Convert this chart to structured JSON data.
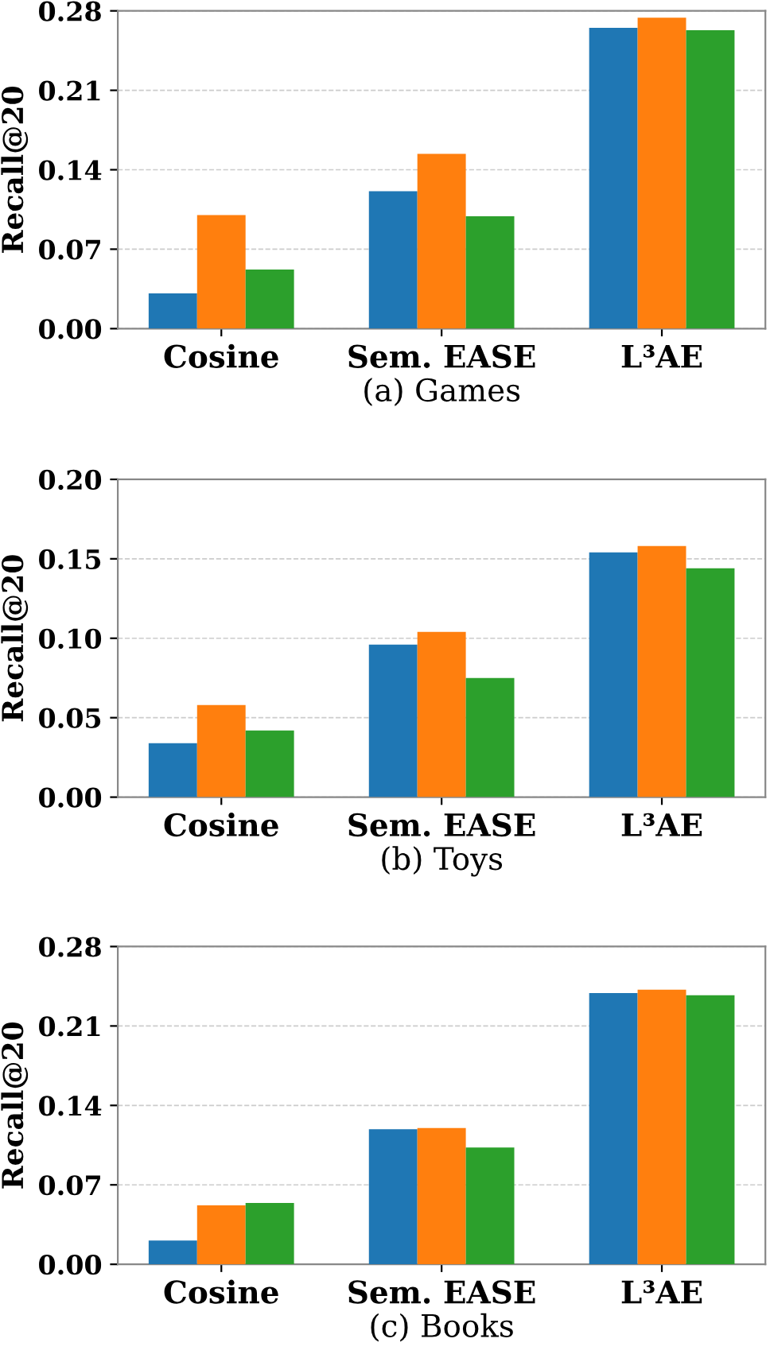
{
  "chart_data": [
    {
      "type": "bar",
      "title": "(a) Games",
      "ylabel": "Recall@20",
      "categories": [
        "Cosine",
        "Sem. EASE",
        "L³AE"
      ],
      "ylim": [
        0,
        0.28
      ],
      "yticks": [
        {
          "value": 0,
          "label": "0.00"
        },
        {
          "value": 0.07,
          "label": "0.07"
        },
        {
          "value": 0.14,
          "label": "0.14"
        },
        {
          "value": 0.21,
          "label": "0.21"
        },
        {
          "value": 0.28,
          "label": "0.28"
        }
      ],
      "grid": "y",
      "series": [
        {
          "color": "#1f77b4",
          "values": [
            0.031,
            0.121,
            0.265
          ]
        },
        {
          "color": "#ff7f0e",
          "values": [
            0.1,
            0.154,
            0.274
          ]
        },
        {
          "color": "#2ca02c",
          "values": [
            0.052,
            0.099,
            0.263
          ]
        }
      ]
    },
    {
      "type": "bar",
      "title": "(b) Toys",
      "ylabel": "Recall@20",
      "categories": [
        "Cosine",
        "Sem. EASE",
        "L³AE"
      ],
      "ylim": [
        0,
        0.2
      ],
      "yticks": [
        {
          "value": 0,
          "label": "0.00"
        },
        {
          "value": 0.05,
          "label": "0.05"
        },
        {
          "value": 0.1,
          "label": "0.10"
        },
        {
          "value": 0.15,
          "label": "0.15"
        },
        {
          "value": 0.2,
          "label": "0.20"
        }
      ],
      "grid": "y",
      "series": [
        {
          "color": "#1f77b4",
          "values": [
            0.034,
            0.096,
            0.154
          ]
        },
        {
          "color": "#ff7f0e",
          "values": [
            0.058,
            0.104,
            0.158
          ]
        },
        {
          "color": "#2ca02c",
          "values": [
            0.042,
            0.075,
            0.144
          ]
        }
      ]
    },
    {
      "type": "bar",
      "title": "(c) Books",
      "ylabel": "Recall@20",
      "categories": [
        "Cosine",
        "Sem. EASE",
        "L³AE"
      ],
      "ylim": [
        0,
        0.28
      ],
      "yticks": [
        {
          "value": 0,
          "label": "0.00"
        },
        {
          "value": 0.07,
          "label": "0.07"
        },
        {
          "value": 0.14,
          "label": "0.14"
        },
        {
          "value": 0.21,
          "label": "0.21"
        },
        {
          "value": 0.28,
          "label": "0.28"
        }
      ],
      "grid": "y",
      "series": [
        {
          "color": "#1f77b4",
          "values": [
            0.021,
            0.119,
            0.239
          ]
        },
        {
          "color": "#ff7f0e",
          "values": [
            0.052,
            0.12,
            0.242
          ]
        },
        {
          "color": "#2ca02c",
          "values": [
            0.054,
            0.103,
            0.237
          ]
        }
      ]
    }
  ]
}
